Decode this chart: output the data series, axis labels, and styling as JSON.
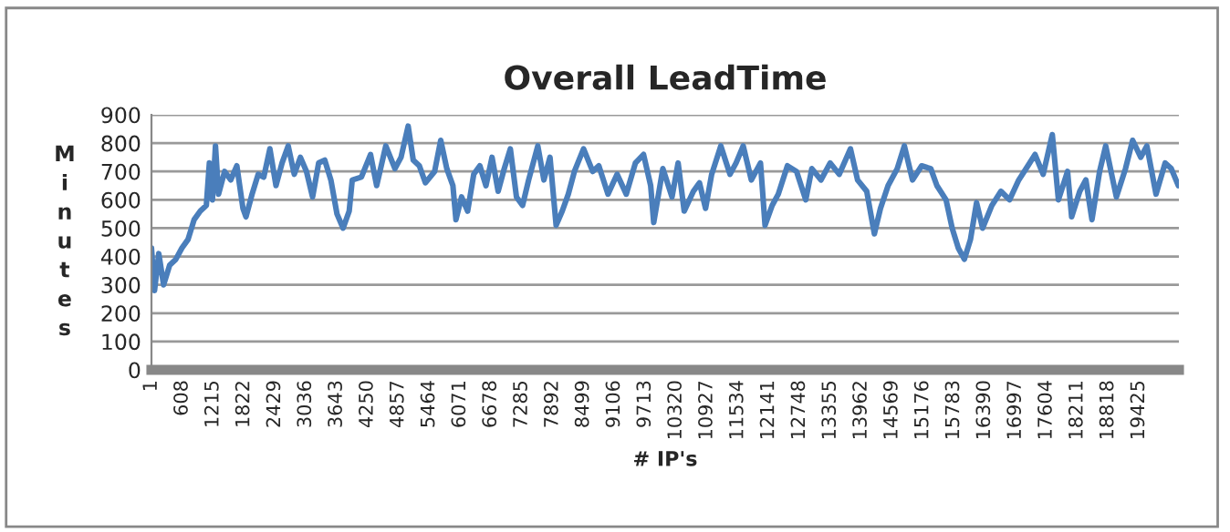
{
  "chart_data": {
    "type": "line",
    "title": "Overall LeadTime",
    "xlabel": "# IP's",
    "ylabel": "Minutes",
    "xlim": [
      1,
      20210
    ],
    "xticks": [
      1,
      608,
      1215,
      1822,
      2429,
      3036,
      3643,
      4250,
      4857,
      5464,
      6071,
      6678,
      7285,
      7892,
      8499,
      9106,
      9713,
      10320,
      10927,
      11534,
      12141,
      12748,
      13355,
      13962,
      14569,
      15176,
      15783,
      16390,
      16997,
      17604,
      18211,
      18818,
      19425
    ],
    "ylim": [
      0,
      900
    ],
    "yticks": [
      0,
      100,
      200,
      300,
      400,
      500,
      600,
      700,
      800,
      900
    ],
    "grid": "y",
    "marker": "none",
    "line_style": "solid",
    "series": [
      {
        "color": "#4a7ebb",
        "x": [
          1,
          61,
          145,
          240,
          360,
          480,
          600,
          720,
          840,
          960,
          1080,
          1140,
          1200,
          1260,
          1320,
          1440,
          1560,
          1680,
          1800,
          1860,
          1980,
          2100,
          2210,
          2330,
          2450,
          2570,
          2690,
          2810,
          2930,
          3050,
          3170,
          3290,
          3410,
          3530,
          3650,
          3770,
          3890,
          3950,
          4130,
          4310,
          4430,
          4610,
          4790,
          4910,
          5050,
          5150,
          5270,
          5390,
          5570,
          5690,
          5810,
          5930,
          5990,
          6100,
          6220,
          6340,
          6460,
          6580,
          6700,
          6820,
          6940,
          7060,
          7180,
          7300,
          7420,
          7600,
          7720,
          7840,
          7960,
          8080,
          8200,
          8320,
          8500,
          8680,
          8800,
          8980,
          9160,
          9340,
          9520,
          9680,
          9820,
          9880,
          10060,
          10240,
          10360,
          10480,
          10660,
          10780,
          10900,
          11020,
          11200,
          11380,
          11500,
          11640,
          11800,
          11980,
          12070,
          12210,
          12330,
          12510,
          12690,
          12870,
          12990,
          13170,
          13350,
          13530,
          13750,
          13890,
          14070,
          14220,
          14340,
          14490,
          14670,
          14810,
          14970,
          15150,
          15330,
          15450,
          15630,
          15750,
          15870,
          15990,
          16110,
          16230,
          16350,
          16530,
          16710,
          16880,
          17060,
          17240,
          17380,
          17540,
          17720,
          17840,
          18020,
          18100,
          18260,
          18380,
          18500,
          18650,
          18770,
          18980,
          19160,
          19300,
          19460,
          19580,
          19760,
          19940,
          20060,
          20200
        ],
        "values": [
          430,
          280,
          410,
          300,
          370,
          390,
          430,
          460,
          530,
          560,
          580,
          730,
          600,
          790,
          620,
          700,
          670,
          720,
          570,
          540,
          620,
          690,
          680,
          780,
          650,
          730,
          790,
          690,
          750,
          700,
          610,
          730,
          740,
          670,
          550,
          500,
          560,
          670,
          680,
          760,
          650,
          790,
          710,
          750,
          860,
          740,
          720,
          660,
          700,
          810,
          710,
          650,
          530,
          610,
          560,
          690,
          720,
          650,
          750,
          630,
          710,
          780,
          610,
          580,
          670,
          790,
          670,
          750,
          510,
          560,
          620,
          700,
          780,
          700,
          720,
          620,
          690,
          620,
          730,
          760,
          650,
          520,
          710,
          610,
          730,
          560,
          630,
          660,
          570,
          690,
          790,
          690,
          730,
          790,
          670,
          730,
          510,
          580,
          620,
          720,
          700,
          600,
          710,
          670,
          730,
          690,
          780,
          670,
          630,
          480,
          570,
          650,
          710,
          790,
          670,
          720,
          710,
          650,
          600,
          500,
          430,
          390,
          460,
          590,
          500,
          580,
          630,
          600,
          670,
          720,
          760,
          690,
          830,
          600,
          700,
          540,
          630,
          670,
          530,
          700,
          790,
          610,
          710,
          810,
          750,
          790,
          620,
          730,
          710,
          650
        ]
      }
    ]
  }
}
